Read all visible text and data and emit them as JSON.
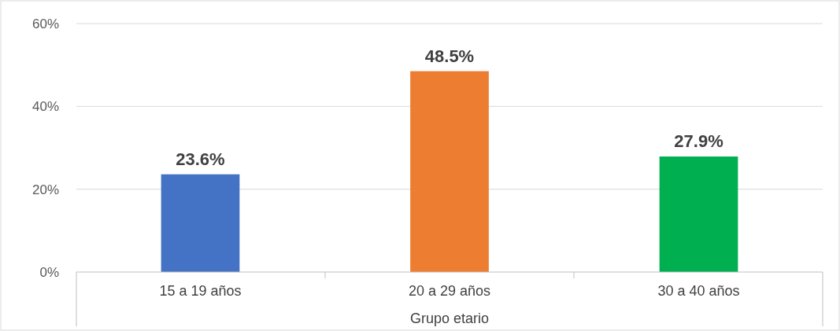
{
  "chart_data": {
    "type": "bar",
    "xlabel": "Grupo etario",
    "categories": [
      "15 a 19 años",
      "20 a 29 años",
      "30 a 40 años"
    ],
    "values": [
      23.6,
      48.5,
      27.9
    ],
    "colors": [
      "#4472c4",
      "#ed7d31",
      "#00b050"
    ],
    "value_labels": [
      "23.6%",
      "48.5%",
      "27.9%"
    ],
    "ylim": [
      0,
      60
    ],
    "yticks": [
      {
        "value": 0,
        "label": "0%"
      },
      {
        "value": 20,
        "label": "20%"
      },
      {
        "value": 40,
        "label": "40%"
      },
      {
        "value": 60,
        "label": "60%"
      }
    ],
    "grid": "y"
  }
}
